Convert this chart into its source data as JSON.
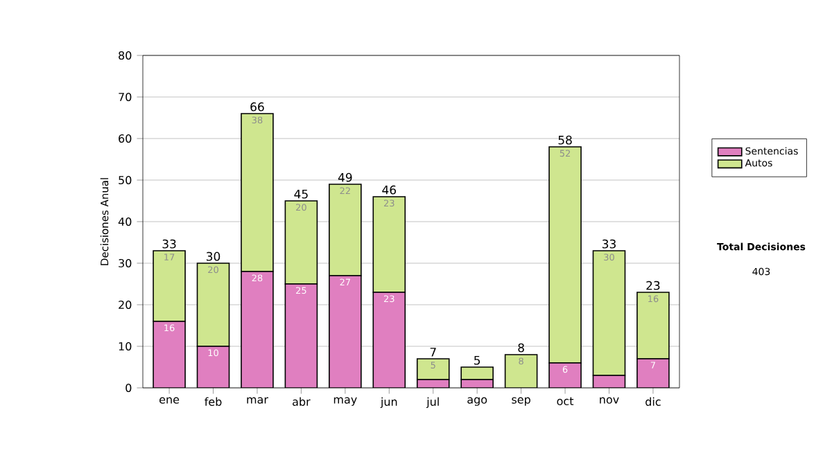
{
  "chart_data": {
    "type": "bar",
    "stacked": true,
    "categories": [
      "ene",
      "feb",
      "mar",
      "abr",
      "may",
      "jun",
      "jul",
      "ago",
      "sep",
      "oct",
      "nov",
      "dic"
    ],
    "ylabel": "Decisiones Anual",
    "ylim": [
      0,
      80
    ],
    "yticks": [
      0,
      10,
      20,
      30,
      40,
      50,
      60,
      70,
      80
    ],
    "grid": "y",
    "legend": "right",
    "series": [
      {
        "name": "Sentencias",
        "color": "#e07fc0",
        "values": [
          16,
          10,
          28,
          25,
          27,
          23,
          2,
          2,
          0,
          6,
          3,
          7
        ],
        "value_labels": [
          "16",
          "10",
          "28",
          "25",
          "27",
          "23",
          null,
          null,
          null,
          "6",
          null,
          "7"
        ]
      },
      {
        "name": "Autos",
        "color": "#cfe68f",
        "values": [
          17,
          20,
          38,
          20,
          22,
          23,
          5,
          3,
          8,
          52,
          30,
          16
        ],
        "value_labels": [
          "17",
          "20",
          "38",
          "20",
          "22",
          "23",
          "5",
          null,
          "8",
          "52",
          "30",
          "16"
        ]
      }
    ],
    "totals": [
      "33",
      "30",
      "66",
      "45",
      "49",
      "46",
      "7",
      "5",
      "8",
      "58",
      "33",
      "23"
    ],
    "annotations": [
      "Total Decisiones",
      "403"
    ]
  }
}
